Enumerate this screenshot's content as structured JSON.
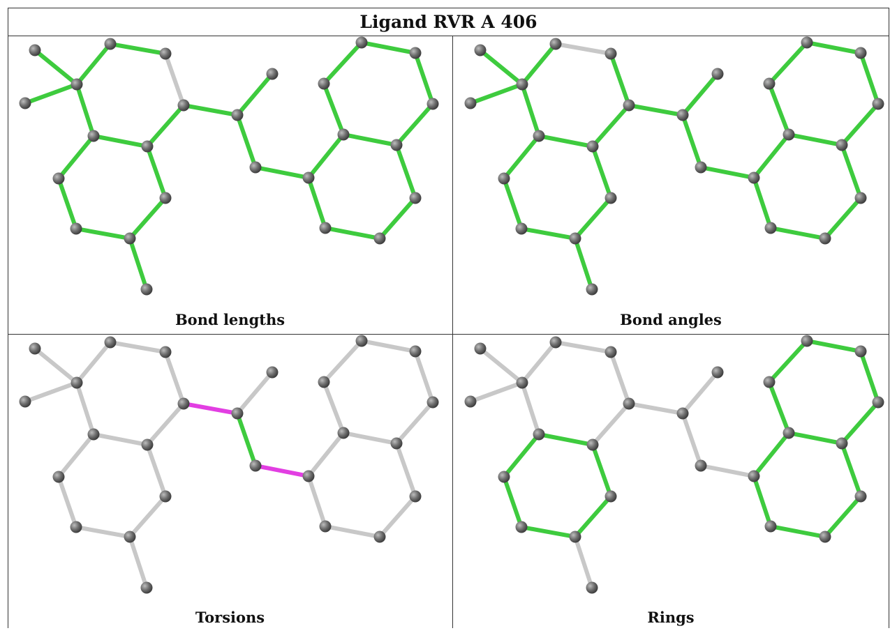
{
  "title": "Ligand RVR A 406",
  "panels": [
    {
      "label": "Bond lengths",
      "highlight": "all"
    },
    {
      "label": "Bond angles",
      "highlight": "angles"
    },
    {
      "label": "Torsions",
      "highlight": "torsions"
    },
    {
      "label": "Rings",
      "highlight": "rings"
    }
  ],
  "colors": {
    "green": "#3ecb3e",
    "grey": "#c8c8c8",
    "magenta": "#e23ee2",
    "atom": "#707070"
  }
}
